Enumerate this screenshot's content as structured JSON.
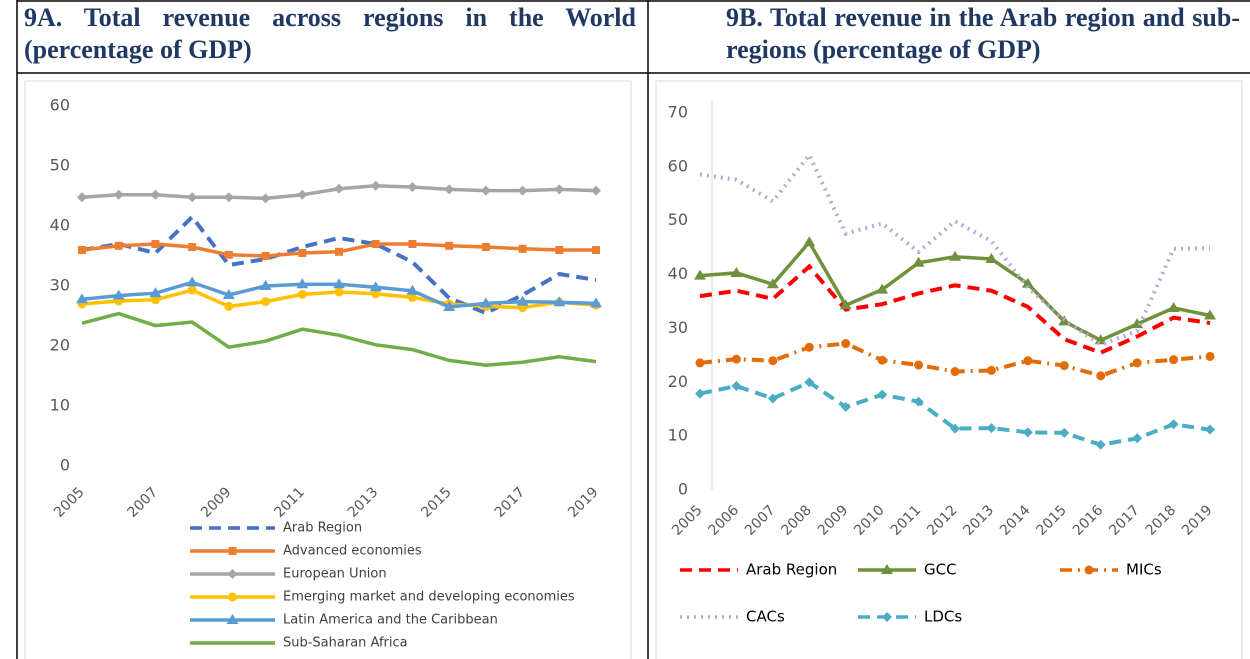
{
  "chart_data": [
    {
      "type": "line",
      "title": "9A. Total revenue across regions in the World (percentage of GDP)",
      "x": [
        2005,
        2006,
        2007,
        2008,
        2009,
        2010,
        2011,
        2012,
        2013,
        2014,
        2015,
        2016,
        2017,
        2018,
        2019
      ],
      "xlim": [
        2005,
        2019
      ],
      "xticks": [
        2005,
        2007,
        2009,
        2011,
        2013,
        2015,
        2017,
        2019
      ],
      "ylim": [
        0,
        60
      ],
      "yticks": [
        0,
        10,
        20,
        30,
        40,
        50,
        60
      ],
      "series": [
        {
          "name": "Arab Region",
          "color": "#4472c4",
          "style": "dashed",
          "marker": "none",
          "values": [
            36,
            37,
            35.5,
            41.5,
            33.5,
            34.5,
            36.5,
            38,
            37,
            34,
            28,
            25.5,
            28.5,
            32,
            31
          ]
        },
        {
          "name": "Advanced economies",
          "color": "#ed7d31",
          "style": "solid",
          "marker": "square",
          "values": [
            36,
            36.7,
            37,
            36.5,
            35.2,
            35,
            35.5,
            35.7,
            37,
            37,
            36.7,
            36.5,
            36.2,
            36,
            36
          ]
        },
        {
          "name": "European Union",
          "color": "#a5a5a5",
          "style": "solid",
          "marker": "diamond",
          "values": [
            44.8,
            45.2,
            45.2,
            44.8,
            44.8,
            44.6,
            45.2,
            46.2,
            46.7,
            46.5,
            46.1,
            45.9,
            45.9,
            46.1,
            45.9
          ]
        },
        {
          "name": "Emerging market and developing economies",
          "color": "#ffc000",
          "style": "solid",
          "marker": "circle",
          "values": [
            27,
            27.5,
            27.7,
            29.3,
            26.6,
            27.4,
            28.6,
            29,
            28.7,
            28.1,
            27,
            26.6,
            26.4,
            27.3,
            26.8
          ]
        },
        {
          "name": "Latin America and the Caribbean",
          "color": "#5b9bd5",
          "style": "solid",
          "marker": "triangle",
          "values": [
            27.8,
            28.4,
            28.8,
            30.6,
            28.5,
            30,
            30.3,
            30.3,
            29.8,
            29.2,
            26.5,
            27.1,
            27.4,
            27.3,
            27.1
          ]
        },
        {
          "name": "Sub-Saharan Africa",
          "color": "#70ad47",
          "style": "solid",
          "marker": "none",
          "values": [
            23.8,
            25.4,
            23.4,
            24,
            19.8,
            20.8,
            22.8,
            21.8,
            20.2,
            19.4,
            17.6,
            16.8,
            17.3,
            18.2,
            17.4
          ]
        }
      ]
    },
    {
      "type": "line",
      "title": "9B. Total revenue in the Arab region and sub-regions (percentage of GDP)",
      "x": [
        2005,
        2006,
        2007,
        2008,
        2009,
        2010,
        2011,
        2012,
        2013,
        2014,
        2015,
        2016,
        2017,
        2018,
        2019
      ],
      "xlim": [
        2005,
        2019
      ],
      "xticks": [
        2005,
        2006,
        2007,
        2008,
        2009,
        2010,
        2011,
        2012,
        2013,
        2014,
        2015,
        2016,
        2017,
        2018,
        2019
      ],
      "ylim": [
        0,
        70
      ],
      "yticks": [
        0,
        10,
        20,
        30,
        40,
        50,
        60,
        70
      ],
      "series": [
        {
          "name": "Arab Region",
          "color": "#ff0000",
          "style": "dashed",
          "marker": "none",
          "values": [
            36,
            37,
            35.5,
            41.5,
            33.5,
            34.5,
            36.5,
            38,
            37,
            34,
            28,
            25.5,
            28.5,
            32,
            31
          ]
        },
        {
          "name": "GCC",
          "color": "#70913c",
          "style": "solid",
          "marker": "triangle",
          "values": [
            39.8,
            40.3,
            38.2,
            46,
            34.3,
            37.2,
            42.2,
            43.3,
            42.9,
            38.3,
            31.3,
            27.8,
            30.8,
            33.8,
            32.4
          ]
        },
        {
          "name": "MICs",
          "color": "#e36c0a",
          "style": "dashdot",
          "marker": "circle",
          "values": [
            23.6,
            24.3,
            24,
            26.5,
            27.2,
            24.1,
            23.2,
            22,
            22.2,
            24,
            23.1,
            21.2,
            23.6,
            24.2,
            24.8
          ]
        },
        {
          "name": "CACs",
          "color": "#b4a7d6",
          "style": "dotted",
          "marker": "none",
          "values": [
            58.6,
            57.6,
            53.6,
            62.2,
            47.6,
            49.5,
            44.2,
            49.9,
            46.2,
            37.6,
            31.6,
            27,
            29.5,
            44.8,
            44.9
          ]
        },
        {
          "name": "LDCs",
          "color": "#4bacc6",
          "style": "dashed",
          "marker": "diamond",
          "values": [
            17.9,
            19.3,
            17,
            20,
            15.4,
            17.7,
            16.4,
            11.4,
            11.5,
            10.7,
            10.6,
            8.4,
            9.6,
            12.2,
            11.2
          ]
        }
      ]
    }
  ]
}
